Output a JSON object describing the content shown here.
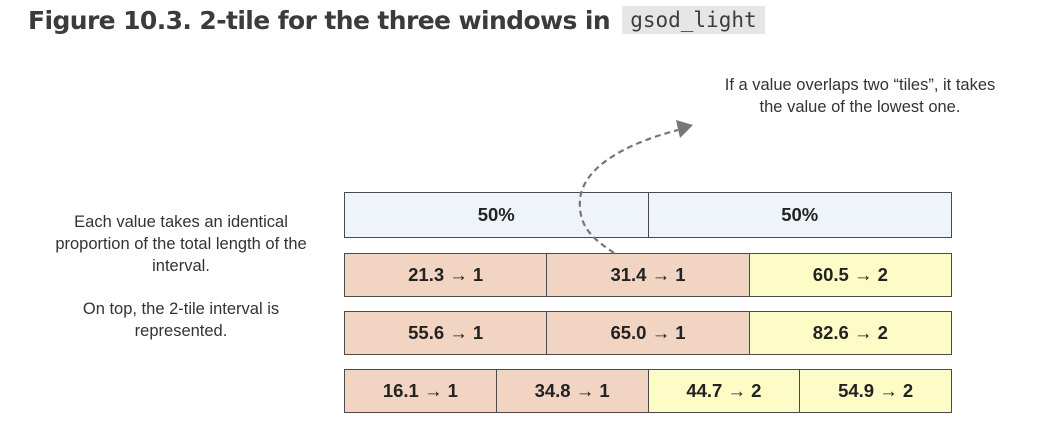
{
  "title": {
    "text": "Figure 10.3. 2-tile for the three windows in",
    "code": "gsod_light"
  },
  "notes": {
    "top": "If a value overlaps two “tiles”, it takes the value of the lowest one.",
    "left_1": "Each value takes an identical proportion of the total length of the interval.",
    "left_2": "On top, the 2-tile interval is represented."
  },
  "percent_bar": [
    "50%",
    "50%"
  ],
  "rows": [
    {
      "cells": [
        {
          "label": "21.3 → 1",
          "tile": 1
        },
        {
          "label": "31.4 → 1",
          "tile": 1
        },
        {
          "label": "60.5 → 2",
          "tile": 2
        }
      ]
    },
    {
      "cells": [
        {
          "label": "55.6 → 1",
          "tile": 1
        },
        {
          "label": "65.0 → 1",
          "tile": 1
        },
        {
          "label": "82.6 → 2",
          "tile": 2
        }
      ]
    },
    {
      "cells": [
        {
          "label": "16.1 → 1",
          "tile": 1
        },
        {
          "label": "34.8 → 1",
          "tile": 1
        },
        {
          "label": "44.7 → 2",
          "tile": 2
        },
        {
          "label": "54.9 → 2",
          "tile": 2
        }
      ]
    }
  ],
  "colors": {
    "tile_1": "#f2d4c2",
    "tile_2": "#fdfbc6",
    "percent": "#eef4f9",
    "arrow": "#777777"
  }
}
